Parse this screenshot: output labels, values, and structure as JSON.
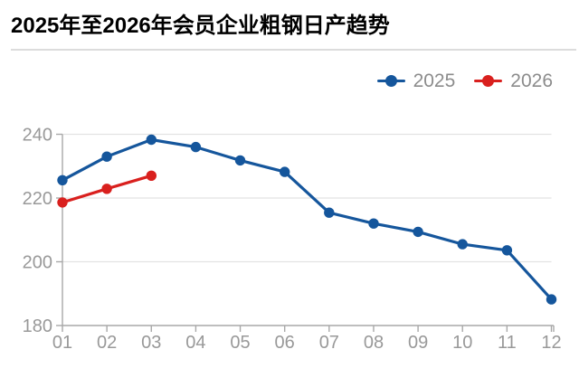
{
  "title": "2025年至2026年会员企业粗钢日产趋势",
  "colors": {
    "background": "#ffffff",
    "title_text": "#000000",
    "divider": "#dcdcdc",
    "grid": "#e2e2e2",
    "axis": "#a8a8a8",
    "axis_label": "#999999",
    "legend_text": "#8c8c8c",
    "series_2025": "#15569c",
    "series_2026": "#d9201e"
  },
  "legend": [
    {
      "label": "2025",
      "color": "#15569c"
    },
    {
      "label": "2026",
      "color": "#d9201e"
    }
  ],
  "chart_data": {
    "type": "line",
    "title": "2025年至2026年会员企业粗钢日产趋势",
    "categories": [
      "01",
      "02",
      "03",
      "04",
      "05",
      "06",
      "07",
      "08",
      "09",
      "10",
      "11",
      "12"
    ],
    "series": [
      {
        "name": "2025",
        "color": "#15569c",
        "values": [
          225.6,
          233.0,
          238.3,
          236.0,
          231.8,
          228.2,
          215.4,
          212.0,
          209.4,
          205.5,
          203.6,
          188.2
        ]
      },
      {
        "name": "2026",
        "color": "#d9201e",
        "values": [
          218.6,
          222.9,
          227.0
        ]
      }
    ],
    "xlabel": "",
    "ylabel": "",
    "ylim": [
      180,
      240
    ],
    "y_ticks": [
      180,
      200,
      220,
      240
    ],
    "grid": true,
    "legend_position": "top-right"
  }
}
